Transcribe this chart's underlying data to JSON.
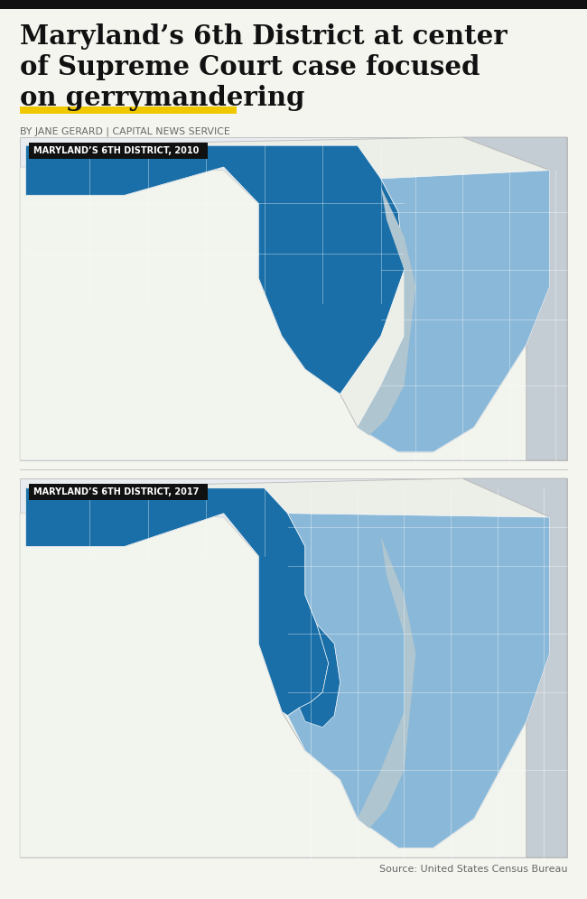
{
  "title_line1": "Maryland’s 6th District at center",
  "title_line2": "of Supreme Court case focused",
  "title_line3": "on gerrymandering",
  "byline": "BY JANE GERARD | CAPITAL NEWS SERVICE",
  "label_2010": "MARYLAND’S 6TH DISTRICT, 2010",
  "label_2017": "MARYLAND’S 6TH DISTRICT, 2017",
  "source": "Source: United States Census Bureau",
  "bg_color": "#f5f5f0",
  "title_color": "#111111",
  "byline_color": "#666666",
  "yellow_bar_color": "#f0c800",
  "label_bg_color": "#111111",
  "label_text_color": "#ffffff",
  "dark_blue": "#1a6fa8",
  "light_blue": "#8ab8d8",
  "water_gray": "#afc5d0",
  "land_light": "#e8ecf0",
  "state_fill": "#eceee8",
  "va_fill": "#f2f4ee",
  "de_fill": "#c5cdd4",
  "divider_color": "#cccccc",
  "top_bar_color": "#111111",
  "map_border": "#bbbbbb"
}
